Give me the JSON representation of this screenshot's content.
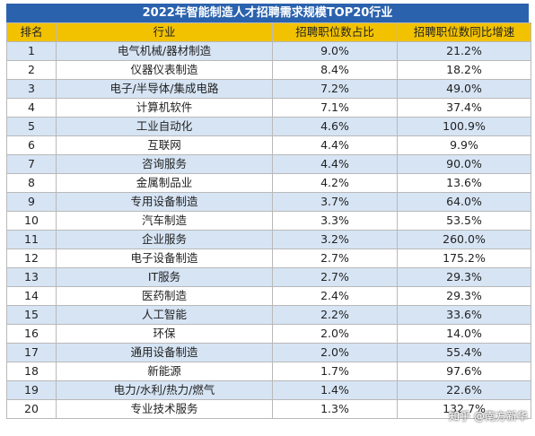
{
  "chart_data": {
    "type": "table",
    "title": "2022年智能制造人才招聘需求规模TOP20行业",
    "columns": [
      "排名",
      "行业",
      "招聘职位数占比",
      "招聘职位数同比增速"
    ],
    "rows": [
      [
        "1",
        "电气机械/器材制造",
        "9.0%",
        "21.2%"
      ],
      [
        "2",
        "仪器仪表制造",
        "8.4%",
        "18.2%"
      ],
      [
        "3",
        "电子/半导体/集成电路",
        "7.2%",
        "49.0%"
      ],
      [
        "4",
        "计算机软件",
        "7.1%",
        "37.4%"
      ],
      [
        "5",
        "工业自动化",
        "4.6%",
        "100.9%"
      ],
      [
        "6",
        "互联网",
        "4.4%",
        "9.9%"
      ],
      [
        "7",
        "咨询服务",
        "4.4%",
        "90.0%"
      ],
      [
        "8",
        "金属制品业",
        "4.2%",
        "13.6%"
      ],
      [
        "9",
        "专用设备制造",
        "3.7%",
        "64.0%"
      ],
      [
        "10",
        "汽车制造",
        "3.3%",
        "53.5%"
      ],
      [
        "11",
        "企业服务",
        "3.2%",
        "260.0%"
      ],
      [
        "12",
        "电子设备制造",
        "2.7%",
        "175.2%"
      ],
      [
        "13",
        "IT服务",
        "2.7%",
        "29.3%"
      ],
      [
        "14",
        "医药制造",
        "2.4%",
        "29.3%"
      ],
      [
        "15",
        "人工智能",
        "2.2%",
        "33.6%"
      ],
      [
        "16",
        "环保",
        "2.0%",
        "14.0%"
      ],
      [
        "17",
        "通用设备制造",
        "2.0%",
        "55.4%"
      ],
      [
        "18",
        "新能源",
        "1.7%",
        "97.6%"
      ],
      [
        "19",
        "电力/水利/热力/燃气",
        "1.4%",
        "22.6%"
      ],
      [
        "20",
        "专业技术服务",
        "1.3%",
        "132.7%"
      ]
    ]
  },
  "watermark": "知乎 @南方新华",
  "colors": {
    "title_bg": "#2b62ad",
    "header_bg": "#f2c200",
    "odd_row_bg": "#d6e4f4",
    "even_row_bg": "#ffffff"
  }
}
